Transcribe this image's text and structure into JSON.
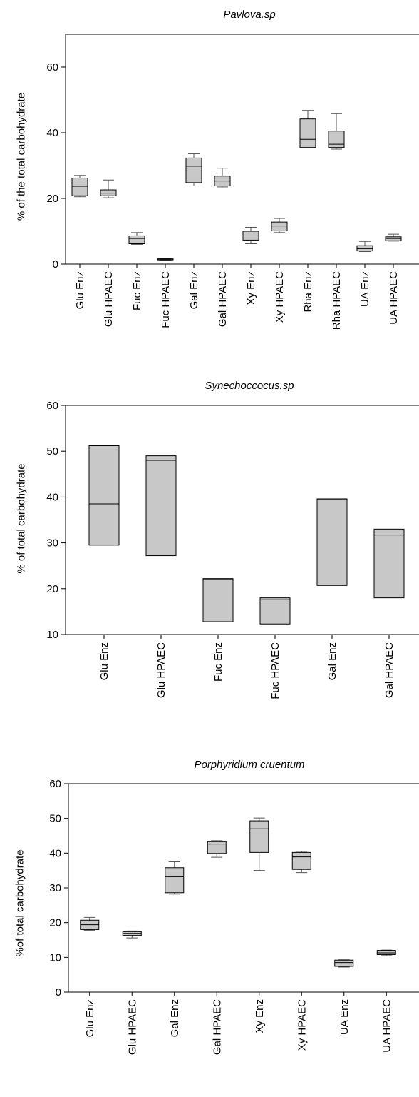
{
  "chart_data": [
    {
      "type": "box",
      "title": "Pavlova.sp",
      "ylabel": "% of the total carbohydrate",
      "xlabel": "",
      "ylim": [
        0,
        70
      ],
      "yticks": [
        0,
        20,
        40,
        60
      ],
      "categories": [
        "Glu Enz",
        "Glu HPAEC",
        "Fuc Enz",
        "Fuc HPAEC",
        "Gal Enz",
        "Gal HPAEC",
        "Xy Enz",
        "Xy HPAEC",
        "Rha Enz",
        "Rha HPAEC",
        "UA Enz",
        "UA HPAEC"
      ],
      "boxes": [
        {
          "min": 20.5,
          "q1": 20.8,
          "median": 23.7,
          "q3": 26.2,
          "max": 27.0
        },
        {
          "min": 20.2,
          "q1": 20.8,
          "median": 21.6,
          "q3": 22.6,
          "max": 25.6
        },
        {
          "min": 6.0,
          "q1": 6.2,
          "median": 7.8,
          "q3": 8.6,
          "max": 9.6
        },
        {
          "min": 1.2,
          "q1": 1.3,
          "median": 1.5,
          "q3": 1.6,
          "max": 1.7
        },
        {
          "min": 23.8,
          "q1": 24.8,
          "median": 29.8,
          "q3": 32.3,
          "max": 33.6
        },
        {
          "min": 23.5,
          "q1": 23.8,
          "median": 25.3,
          "q3": 26.8,
          "max": 29.2
        },
        {
          "min": 6.2,
          "q1": 7.3,
          "median": 8.6,
          "q3": 10.0,
          "max": 11.2
        },
        {
          "min": 9.6,
          "q1": 10.1,
          "median": 11.6,
          "q3": 12.8,
          "max": 13.9
        },
        {
          "min": 35.5,
          "q1": 35.5,
          "median": 38.0,
          "q3": 44.2,
          "max": 46.8
        },
        {
          "min": 35.0,
          "q1": 35.5,
          "median": 36.5,
          "q3": 40.5,
          "max": 45.8
        },
        {
          "min": 3.8,
          "q1": 4.0,
          "median": 4.7,
          "q3": 5.6,
          "max": 6.9
        },
        {
          "min": 7.0,
          "q1": 7.1,
          "median": 7.8,
          "q3": 8.3,
          "max": 9.1
        }
      ]
    },
    {
      "type": "box",
      "title": "Synechoccocus.sp",
      "ylabel": "% of total carbohydrate",
      "xlabel": "",
      "ylim": [
        10,
        60
      ],
      "yticks": [
        10,
        20,
        30,
        40,
        50,
        60
      ],
      "categories": [
        "Glu Enz",
        "Glu HPAEC",
        "Fuc Enz",
        "Fuc HPAEC",
        "Gal Enz",
        "Gal HPAEC"
      ],
      "boxes": [
        {
          "min": 29.5,
          "q1": 29.5,
          "median": 38.5,
          "q3": 51.2,
          "max": 51.2
        },
        {
          "min": 27.2,
          "q1": 27.2,
          "median": 48.0,
          "q3": 49.0,
          "max": 49.0
        },
        {
          "min": 12.8,
          "q1": 12.8,
          "median": 22.0,
          "q3": 22.2,
          "max": 22.2
        },
        {
          "min": 12.3,
          "q1": 12.3,
          "median": 17.6,
          "q3": 18.0,
          "max": 18.0
        },
        {
          "min": 20.7,
          "q1": 20.7,
          "median": 39.4,
          "q3": 39.6,
          "max": 39.6
        },
        {
          "min": 18.0,
          "q1": 18.0,
          "median": 31.7,
          "q3": 33.0,
          "max": 33.0
        }
      ]
    },
    {
      "type": "box",
      "title": "Porphyridium cruentum",
      "ylabel": "%of total carbohydrate",
      "xlabel": "",
      "ylim": [
        0,
        60
      ],
      "yticks": [
        0,
        10,
        20,
        30,
        40,
        50,
        60
      ],
      "categories": [
        "Glu Enz",
        "Glu HPAEC",
        "Gal Enz",
        "Gal HPAEC",
        "Xy Enz",
        "Xy HPAEC",
        "UA Enz",
        "UA HPAEC"
      ],
      "boxes": [
        {
          "min": 17.8,
          "q1": 18.0,
          "median": 19.4,
          "q3": 20.7,
          "max": 21.5
        },
        {
          "min": 15.6,
          "q1": 16.3,
          "median": 16.9,
          "q3": 17.4,
          "max": 17.6
        },
        {
          "min": 28.2,
          "q1": 28.6,
          "median": 33.2,
          "q3": 35.8,
          "max": 37.5
        },
        {
          "min": 38.8,
          "q1": 39.9,
          "median": 42.6,
          "q3": 43.3,
          "max": 43.6
        },
        {
          "min": 35.0,
          "q1": 40.2,
          "median": 47.0,
          "q3": 49.3,
          "max": 50.1
        },
        {
          "min": 34.4,
          "q1": 35.3,
          "median": 38.9,
          "q3": 40.2,
          "max": 40.5
        },
        {
          "min": 7.2,
          "q1": 7.4,
          "median": 8.5,
          "q3": 9.2,
          "max": 9.3
        },
        {
          "min": 10.5,
          "q1": 10.8,
          "median": 11.3,
          "q3": 12.0,
          "max": 12.1
        }
      ]
    }
  ],
  "colors": {
    "box_fill": "#c8c8c8",
    "line": "#000000",
    "whisker": "#555555"
  }
}
